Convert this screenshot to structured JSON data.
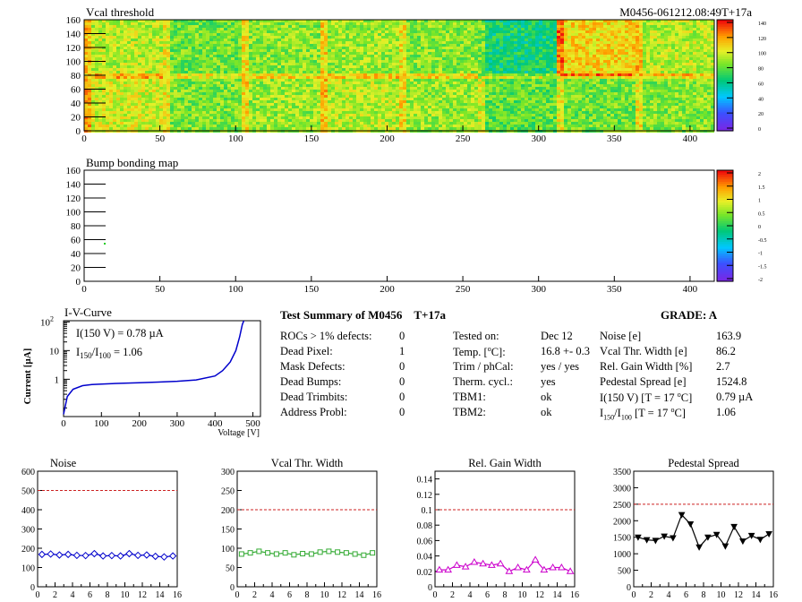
{
  "header": {
    "map1_title": "Vcal threshold",
    "run_id": "M0456-061212.08:49T+17a",
    "map2_title": "Bump bonding map"
  },
  "map1": {
    "x_ticks": [
      0,
      50,
      100,
      150,
      200,
      250,
      300,
      350,
      400
    ],
    "y_ticks": [
      0,
      20,
      40,
      60,
      80,
      100,
      120,
      140,
      160
    ],
    "xlim": [
      0,
      416
    ],
    "ylim": [
      0,
      160
    ],
    "palette_labels": [
      "0",
      "20",
      "40",
      "60",
      "80",
      "100",
      "120",
      "140"
    ],
    "palette_range": [
      0,
      150
    ],
    "roc_mean_vcal_bottom": [
      105,
      90,
      95,
      100,
      95,
      85,
      88,
      92
    ],
    "roc_mean_vcal_top": [
      100,
      88,
      92,
      95,
      92,
      70,
      115,
      100
    ]
  },
  "map2": {
    "x_ticks": [
      0,
      50,
      100,
      150,
      200,
      250,
      300,
      350,
      400
    ],
    "y_ticks": [
      0,
      20,
      40,
      60,
      80,
      100,
      120,
      140,
      160
    ],
    "xlim": [
      0,
      416
    ],
    "ylim": [
      0,
      160
    ],
    "palette_labels": [
      "2",
      "1.5",
      "1",
      "0.5",
      "0",
      "-0.5",
      "-1",
      "-1.5",
      "-2"
    ],
    "palette_range": [
      -2,
      2
    ]
  },
  "iv": {
    "title": "I-V-Curve",
    "ylabel": "Current [µA]",
    "xlabel": "Voltage [V]",
    "y_tick_labels": [
      "1",
      "10",
      "10"
    ],
    "y_tick_sup": "2",
    "x_ticks": [
      0,
      100,
      200,
      300,
      400,
      500
    ],
    "ann1": "I(150 V) = 0.78 µA",
    "ann2_pre": "I",
    "ann2_sub1": "150",
    "ann2_mid": "/I",
    "ann2_sub2": "100",
    "ann2_post": " =  1.06",
    "points": [
      [
        0,
        0.06
      ],
      [
        10,
        0.25
      ],
      [
        25,
        0.45
      ],
      [
        50,
        0.6
      ],
      [
        75,
        0.65
      ],
      [
        100,
        0.68
      ],
      [
        150,
        0.72
      ],
      [
        200,
        0.76
      ],
      [
        250,
        0.8
      ],
      [
        300,
        0.85
      ],
      [
        350,
        0.95
      ],
      [
        400,
        1.3
      ],
      [
        420,
        2
      ],
      [
        440,
        4
      ],
      [
        455,
        10
      ],
      [
        465,
        30
      ],
      [
        472,
        80
      ],
      [
        476,
        110
      ]
    ]
  },
  "summary": {
    "title": "Test Summary of M0456",
    "title_tag": "T+17a",
    "grade_label": "GRADE:  A",
    "defects": [
      {
        "label": "ROCs > 1% defects:",
        "value": "0"
      },
      {
        "label": "Dead Pixel:",
        "value": "1"
      },
      {
        "label": "Mask Defects:",
        "value": "0"
      },
      {
        "label": "Dead Bumps:",
        "value": "0"
      },
      {
        "label": "Dead Trimbits:",
        "value": "0"
      },
      {
        "label": "Address Probl:",
        "value": "0"
      }
    ],
    "tested_label": "Tested on:",
    "tested_value": "Dec 12",
    "temp_label_pre": "Temp. [",
    "temp_label_sup": "o",
    "temp_label_post": "C]:",
    "temp_value": "16.8 +- 0.3",
    "trim_label": "Trim / phCal:",
    "trim_value": "yes / yes",
    "therm_label": "Therm. cycl.:",
    "therm_value": "yes",
    "tbm1_label": "TBM1:",
    "tbm1_value": "ok",
    "tbm2_label": "TBM2:",
    "tbm2_value": "ok",
    "noise_label": "Noise [e]",
    "noise_value": "163.9",
    "vcal_label": "Vcal Thr. Width [e]",
    "vcal_value": "86.2",
    "gain_label": "Rel. Gain Width [%]",
    "gain_value": "2.7",
    "ped_label": "Pedestal Spread [e]",
    "ped_value": "1524.8",
    "i150_label_pre": "I(150 V) [T = 17 ",
    "i150_label_sup": "o",
    "i150_label_post": "C]",
    "i150_value": "0.79 µA",
    "ratio_pre": "I",
    "ratio_sub1": "150",
    "ratio_mid": "/I",
    "ratio_sub2": "100",
    "ratio_post": "   [T = 17 ",
    "ratio_sup": "o",
    "ratio_end": "C]",
    "ratio_value": "1.06"
  },
  "chart_data": [
    {
      "type": "line",
      "title": "Noise",
      "x": [
        0,
        1,
        2,
        3,
        4,
        5,
        6,
        7,
        8,
        9,
        10,
        11,
        12,
        13,
        14,
        15
      ],
      "series": [
        {
          "values": [
            168,
            170,
            165,
            168,
            163,
            162,
            172,
            160,
            162,
            160,
            172,
            163,
            165,
            158,
            155,
            160
          ]
        }
      ],
      "ylim": [
        0,
        600
      ],
      "xlim": [
        0,
        16
      ],
      "y_ticks": [
        0,
        100,
        200,
        300,
        400,
        500,
        600
      ],
      "limit_line": 500,
      "color": "#0000cc",
      "marker": "diamond"
    },
    {
      "type": "line",
      "title": "Vcal Thr. Width",
      "x": [
        0,
        1,
        2,
        3,
        4,
        5,
        6,
        7,
        8,
        9,
        10,
        11,
        12,
        13,
        14,
        15
      ],
      "series": [
        {
          "values": [
            85,
            88,
            92,
            88,
            85,
            88,
            83,
            86,
            85,
            90,
            92,
            90,
            88,
            85,
            82,
            88
          ]
        }
      ],
      "ylim": [
        0,
        300
      ],
      "xlim": [
        0,
        16
      ],
      "y_ticks": [
        0,
        50,
        100,
        150,
        200,
        250,
        300
      ],
      "limit_line": 200,
      "color": "#33aa33",
      "marker": "square"
    },
    {
      "type": "line",
      "title": "Rel. Gain Width",
      "x": [
        0,
        1,
        2,
        3,
        4,
        5,
        6,
        7,
        8,
        9,
        10,
        11,
        12,
        13,
        14,
        15
      ],
      "series": [
        {
          "values": [
            0.022,
            0.022,
            0.028,
            0.026,
            0.032,
            0.03,
            0.028,
            0.03,
            0.02,
            0.025,
            0.022,
            0.035,
            0.022,
            0.025,
            0.025,
            0.02
          ]
        }
      ],
      "ylim": [
        0,
        0.15
      ],
      "xlim": [
        0,
        16
      ],
      "y_ticks": [
        0,
        0.02,
        0.04,
        0.06,
        0.08,
        0.1,
        0.12,
        0.14
      ],
      "limit_line": 0.1,
      "color": "#cc00cc",
      "marker": "triangle"
    },
    {
      "type": "line",
      "title": "Pedestal Spread",
      "x": [
        0,
        1,
        2,
        3,
        4,
        5,
        6,
        7,
        8,
        9,
        10,
        11,
        12,
        13,
        14,
        15
      ],
      "series": [
        {
          "values": [
            1500,
            1420,
            1400,
            1530,
            1480,
            2180,
            1900,
            1200,
            1500,
            1580,
            1230,
            1820,
            1380,
            1550,
            1430,
            1600
          ]
        }
      ],
      "ylim": [
        0,
        3500
      ],
      "xlim": [
        0,
        16
      ],
      "y_ticks": [
        0,
        500,
        1000,
        1500,
        2000,
        2500,
        3000,
        3500
      ],
      "limit_line": 2500,
      "color": "#000000",
      "marker": "triangle-down"
    }
  ]
}
